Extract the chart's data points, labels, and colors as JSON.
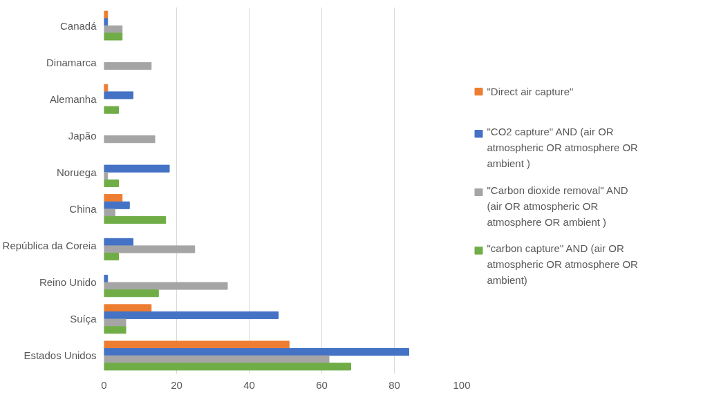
{
  "chart_data": {
    "type": "bar",
    "orientation": "horizontal",
    "categories": [
      "Canadá",
      "Dinamarca",
      "Alemanha",
      "Japão",
      "Noruega",
      "China",
      "República da Coreia",
      "Reino Unido",
      "Suíça",
      "Estados Unidos"
    ],
    "series": [
      {
        "name": "\"Direct air capture\"",
        "color": "#ed7d31",
        "values": [
          1,
          null,
          1,
          null,
          null,
          5,
          null,
          null,
          13,
          51
        ]
      },
      {
        "name": "\"CO2 capture\" AND (air OR atmospheric OR atmosphere OR ambient )",
        "color": "#4472c4",
        "values": [
          1,
          null,
          8,
          null,
          18,
          7,
          8,
          1,
          48,
          84
        ]
      },
      {
        "name": "\"Carbon dioxide removal\" AND (air OR atmospheric OR atmosphere OR ambient )",
        "color": "#a5a5a5",
        "values": [
          5,
          13,
          null,
          14,
          1,
          3,
          25,
          34,
          6,
          62
        ]
      },
      {
        "name": "\"carbon capture\" AND (air OR atmospheric OR atmosphere OR ambient)",
        "color": "#70ad47",
        "values": [
          5,
          null,
          4,
          null,
          4,
          17,
          4,
          15,
          6,
          68
        ]
      }
    ],
    "xlim": [
      0,
      100
    ],
    "xticks": [
      0,
      20,
      40,
      60,
      80,
      100
    ],
    "grid": "x",
    "legend": "right"
  }
}
